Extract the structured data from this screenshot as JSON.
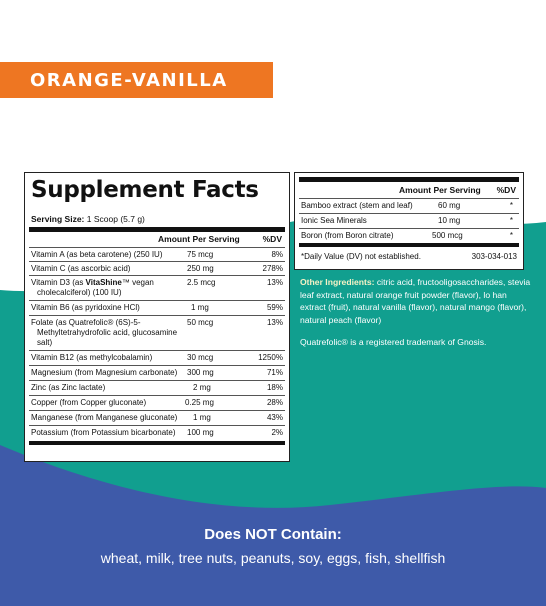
{
  "flavor": "ORANGE-VANILLA",
  "colors": {
    "orange": "#ee7622",
    "teal": "#119f8f",
    "blue": "#3e5aa9",
    "ingredients_label": "#f6f2c6"
  },
  "facts": {
    "title": "Supplement Facts",
    "serving_label": "Serving Size:",
    "serving_value": "1 Scoop (5.7 g)",
    "header_amount": "Amount Per Serving",
    "header_dv": "%DV",
    "rows": [
      {
        "name": "Vitamin A (as beta carotene) (250 IU)",
        "amount": "75 mcg",
        "dv": "8%"
      },
      {
        "name": "Vitamin C (as ascorbic acid)",
        "amount": "250 mg",
        "dv": "278%"
      },
      {
        "name_1": "Vitamin D3 (as ",
        "name_brand": "VitaShine",
        "name_tm": "™",
        "name_2": " vegan",
        "name_line2": "cholecalciferol) (100 IU)",
        "amount": "2.5 mcg",
        "dv": "13%"
      },
      {
        "name": "Vitamin B6 (as pyridoxine HCl)",
        "amount": "1 mg",
        "dv": "59%"
      },
      {
        "name_line1": "Folate (as Quatrefolic® (6S)-5-",
        "name_line2": "Methyltetrahydrofolic acid, glucosamine",
        "name_line3": "salt)",
        "amount": "50 mcg",
        "dv": "13%"
      },
      {
        "name": "Vitamin B12 (as methylcobalamin)",
        "amount": "30 mcg",
        "dv": "1250%"
      },
      {
        "name": "Magnesium (from Magnesium carbonate)",
        "amount": "300 mg",
        "dv": "71%"
      },
      {
        "name": "Zinc (as Zinc lactate)",
        "amount": "2 mg",
        "dv": "18%"
      },
      {
        "name": "Copper (from Copper gluconate)",
        "amount": "0.25 mg",
        "dv": "28%"
      },
      {
        "name": "Manganese (from Manganese gluconate)",
        "amount": "1 mg",
        "dv": "43%"
      },
      {
        "name": "Potassium (from Potassium bicarbonate)",
        "amount": "100 mg",
        "dv": "2%"
      }
    ]
  },
  "facts_cont": {
    "header_amount": "Amount Per Serving",
    "header_dv": "%DV",
    "rows": [
      {
        "name": "Bamboo extract (stem and leaf)",
        "amount": "60 mg",
        "dv": "*"
      },
      {
        "name": "Ionic Sea Minerals",
        "amount": "10 mg",
        "dv": "*"
      },
      {
        "name": "Boron (from Boron citrate)",
        "amount": "500 mcg",
        "dv": "*"
      }
    ],
    "footnote": "*Daily Value (DV) not established.",
    "code": "303-034-013"
  },
  "other": {
    "label": "Other Ingredients:",
    "text": " citric acid, fructooligosaccharides, stevia leaf extract, natural orange fruit powder (flavor), lo han extract (fruit), natural vanilla (flavor), natural mango (flavor), natural peach (flavor)"
  },
  "trademark": "Quatrefolic® is a registered trademark of Gnosis.",
  "dnc": {
    "title": "Does NOT Contain:",
    "list": "wheat, milk, tree nuts, peanuts, soy, eggs, fish, shellfish"
  }
}
